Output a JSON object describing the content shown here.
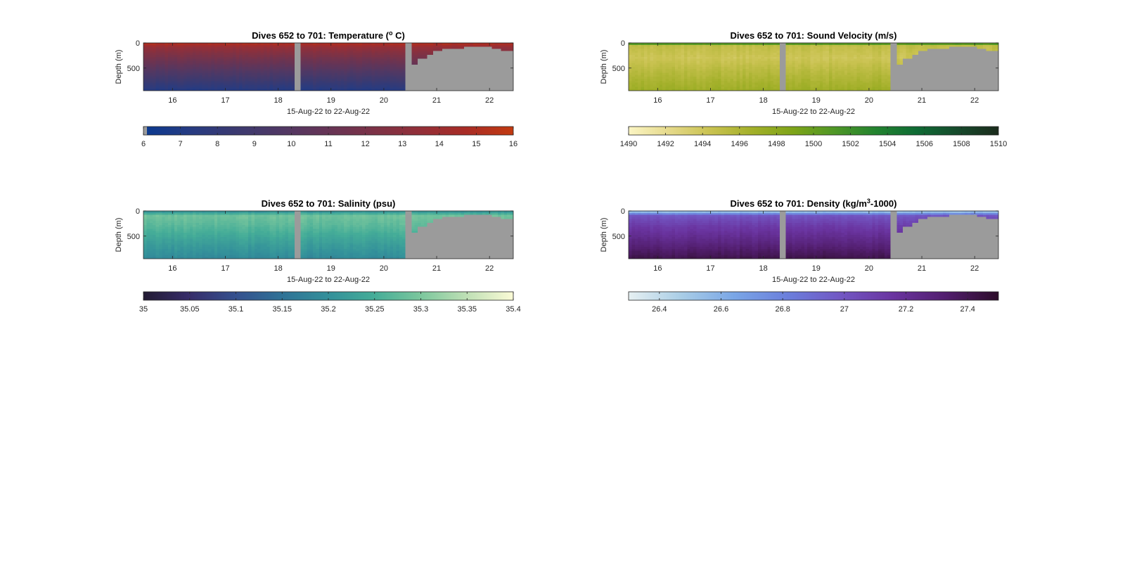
{
  "chart_data": [
    {
      "type": "heatmap",
      "title_main": "Dives 652 to 701: Temperature (",
      "title_sup": "o",
      "title_tail": " C)",
      "xlabel": "15-Aug-22 to 22-Aug-22",
      "ylabel": "Depth (m)",
      "xticks": [
        "16",
        "17",
        "18",
        "19",
        "20",
        "21",
        "22"
      ],
      "xlim": [
        15.45,
        22.45
      ],
      "yticks": [
        "0",
        "500"
      ],
      "ylim": [
        0,
        950
      ],
      "colorbar": {
        "ticks": [
          "6",
          "7",
          "8",
          "9",
          "10",
          "11",
          "12",
          "13",
          "14",
          "15",
          "16"
        ],
        "range": [
          6,
          16
        ],
        "colormap": [
          "#0a3a90",
          "#263b82",
          "#3b3a70",
          "#503864",
          "#663455",
          "#7c3246",
          "#932f38",
          "#a92c25",
          "#c23a10"
        ]
      },
      "no_data_color": "#9b9b9b",
      "depth_profile": [
        {
          "depth": 0,
          "value": 15.2
        },
        {
          "depth": 100,
          "value": 13.4
        },
        {
          "depth": 300,
          "value": 11.8
        },
        {
          "depth": 600,
          "value": 9.6
        },
        {
          "depth": 950,
          "value": 7.2
        }
      ]
    },
    {
      "type": "heatmap",
      "title_main": "Dives 652 to 701: Sound Velocity (m/s)",
      "title_sup": "",
      "title_tail": "",
      "xlabel": "15-Aug-22 to 22-Aug-22",
      "ylabel": "Depth (m)",
      "xticks": [
        "16",
        "17",
        "18",
        "19",
        "20",
        "21",
        "22"
      ],
      "xlim": [
        15.45,
        22.45
      ],
      "yticks": [
        "0",
        "500"
      ],
      "ylim": [
        0,
        950
      ],
      "colorbar": {
        "ticks": [
          "1490",
          "1492",
          "1494",
          "1496",
          "1498",
          "1500",
          "1502",
          "1504",
          "1506",
          "1508",
          "1510"
        ],
        "range": [
          1490,
          1510
        ],
        "colormap": [
          "#fbf5c4",
          "#e5d98a",
          "#c9c250",
          "#a3b02a",
          "#7ea418",
          "#4f9726",
          "#23832f",
          "#0e6b34",
          "#164a2c",
          "#1b2b1c"
        ]
      },
      "no_data_color": "#9b9b9b",
      "depth_profile": [
        {
          "depth": 0,
          "value": 1503.5
        },
        {
          "depth": 60,
          "value": 1495.0
        },
        {
          "depth": 300,
          "value": 1494.2
        },
        {
          "depth": 600,
          "value": 1495.6
        },
        {
          "depth": 950,
          "value": 1497.0
        }
      ]
    },
    {
      "type": "heatmap",
      "title_main": "Dives 652 to 701: Salinity (psu)",
      "title_sup": "",
      "title_tail": "",
      "xlabel": "15-Aug-22 to 22-Aug-22",
      "ylabel": "Depth (m)",
      "xticks": [
        "16",
        "17",
        "18",
        "19",
        "20",
        "21",
        "22"
      ],
      "xlim": [
        15.45,
        22.45
      ],
      "yticks": [
        "0",
        "500"
      ],
      "ylim": [
        0,
        950
      ],
      "colorbar": {
        "ticks": [
          "35",
          "35.05",
          "35.1",
          "35.15",
          "35.2",
          "35.25",
          "35.3",
          "35.35",
          "35.4"
        ],
        "range": [
          35,
          35.4
        ],
        "colormap": [
          "#231b33",
          "#372d6a",
          "#34508e",
          "#2f7296",
          "#33909a",
          "#45ad98",
          "#7cc79d",
          "#bfe0b5",
          "#fbfbd6"
        ]
      },
      "no_data_color": "#9b9b9b",
      "depth_profile": [
        {
          "depth": 0,
          "value": 35.2
        },
        {
          "depth": 100,
          "value": 35.29
        },
        {
          "depth": 300,
          "value": 35.27
        },
        {
          "depth": 600,
          "value": 35.23
        },
        {
          "depth": 950,
          "value": 35.19
        }
      ]
    },
    {
      "type": "heatmap",
      "title_main": "Dives 652 to 701: Density (kg/m",
      "title_sup": "3",
      "title_tail": "-1000)",
      "xlabel": "15-Aug-22 to 22-Aug-22",
      "ylabel": "Depth (m)",
      "xticks": [
        "16",
        "17",
        "18",
        "19",
        "20",
        "21",
        "22"
      ],
      "xlim": [
        15.45,
        22.45
      ],
      "yticks": [
        "0",
        "500"
      ],
      "ylim": [
        0,
        950
      ],
      "colorbar": {
        "ticks": [
          "26.4",
          "26.6",
          "26.8",
          "27",
          "27.2",
          "27.4"
        ],
        "range": [
          26.3,
          27.5
        ],
        "colormap": [
          "#e6f0f2",
          "#a9cde6",
          "#7aa6e6",
          "#6b7fdc",
          "#7258c4",
          "#6a34a0",
          "#521e6e",
          "#2d0d2a"
        ]
      },
      "no_data_color": "#9b9b9b",
      "depth_profile": [
        {
          "depth": 0,
          "value": 26.45
        },
        {
          "depth": 100,
          "value": 27.0
        },
        {
          "depth": 300,
          "value": 27.12
        },
        {
          "depth": 600,
          "value": 27.25
        },
        {
          "depth": 950,
          "value": 27.42
        }
      ]
    }
  ]
}
